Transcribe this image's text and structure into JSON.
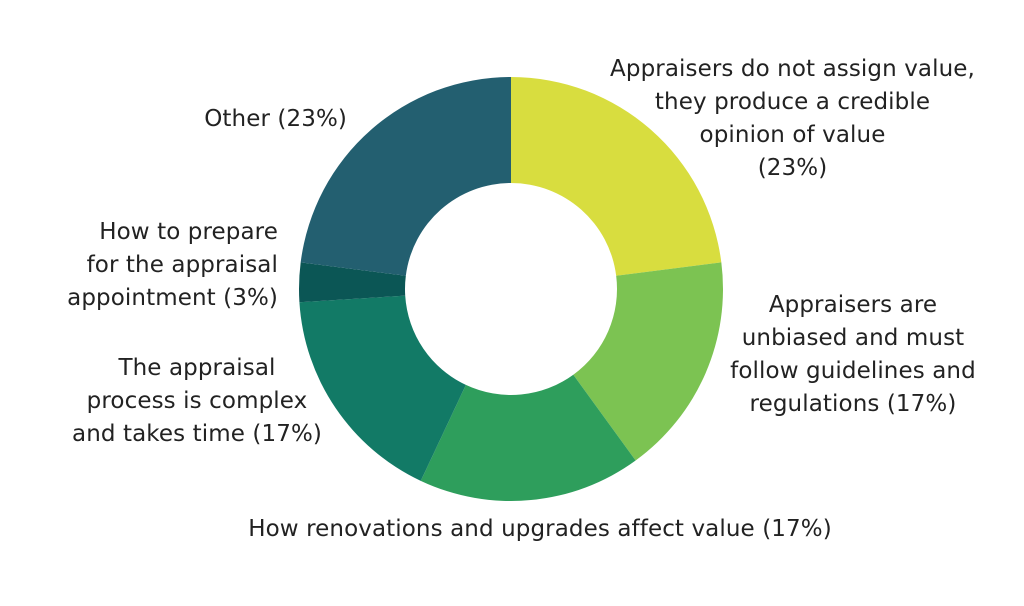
{
  "chart_data": {
    "type": "pie",
    "subtype": "donut",
    "title": "",
    "slices": [
      {
        "label": "Appraisers do not assign value,\nthey produce a credible\nopinion of value\n(23%)",
        "value": 23,
        "color": "#d8dd3f"
      },
      {
        "label": "Appraisers are\nunbiased and must\nfollow guidelines and\nregulations (17%)",
        "value": 17,
        "color": "#7cc352"
      },
      {
        "label": "How renovations and upgrades affect value (17%)",
        "value": 17,
        "color": "#2e9e5c"
      },
      {
        "label": "The appraisal\nprocess is complex\nand takes time (17%)",
        "value": 17,
        "color": "#127a66"
      },
      {
        "label": "How to prepare\nfor the appraisal\nappointment (3%)",
        "value": 3,
        "color": "#0b5655"
      },
      {
        "label": "Other (23%)",
        "value": 23,
        "color": "#235f70"
      }
    ],
    "legend": "none"
  }
}
